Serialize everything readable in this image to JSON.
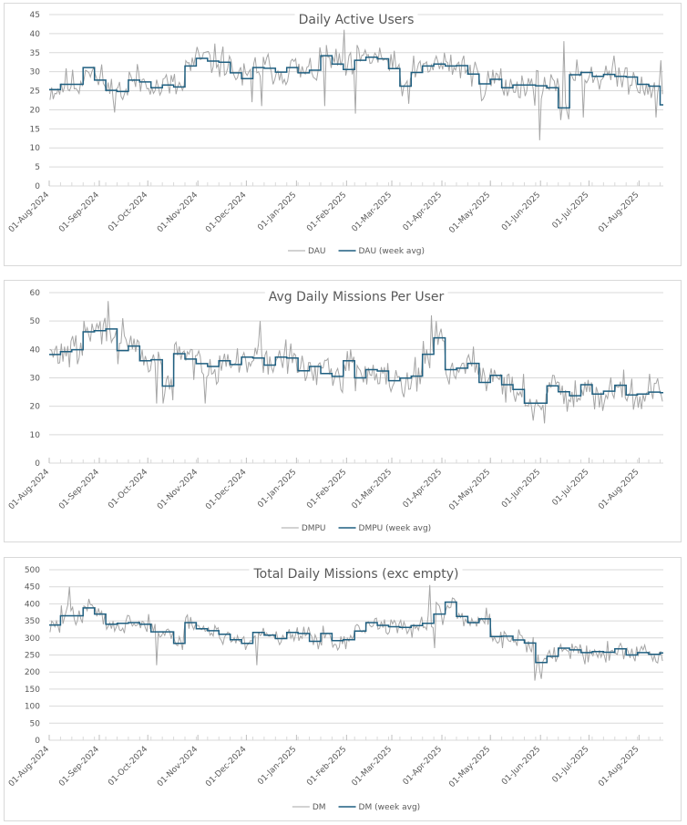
{
  "chart_data": [
    {
      "type": "line",
      "title": "Daily Active Users",
      "xlabel": "",
      "ylabel": "",
      "ylim": [
        0,
        45
      ],
      "yticks": [
        0,
        5,
        10,
        15,
        20,
        25,
        30,
        35,
        40,
        45
      ],
      "x_start": "01-Aug-2024",
      "x_days": 380,
      "xtick_labels": [
        "01-Aug-2024",
        "01-Sep-2024",
        "01-Oct-2024",
        "01-Nov-2024",
        "01-Dec-2024",
        "01-Jan-2025",
        "01-Feb-2025",
        "01-Mar-2025",
        "01-Apr-2025",
        "01-May-2025",
        "01-Jun-2025",
        "01-Jul-2025",
        "01-Aug-2025"
      ],
      "xtick_day_offsets": [
        0,
        31,
        61,
        92,
        122,
        153,
        184,
        212,
        243,
        273,
        304,
        334,
        365
      ],
      "grid": true,
      "legend_position": "bottom",
      "series": [
        {
          "name": "DAU",
          "color": "#a6a6a6",
          "kind": "daily",
          "noise": 4.2,
          "seed": 11,
          "spikes": [
            [
              63,
              26
            ],
            [
              125,
              22
            ],
            [
              131,
              21
            ],
            [
              170,
              21
            ],
            [
              182,
              41
            ],
            [
              189,
              19
            ],
            [
              303,
              12
            ],
            [
              318,
              38
            ],
            [
              330,
              18
            ],
            [
              375,
              18
            ],
            [
              378,
              33
            ]
          ]
        },
        {
          "name": "DAU (week avg)",
          "color": "#1f5f80",
          "kind": "weekly",
          "values": [
            25.3,
            26.7,
            26.7,
            31.1,
            27.8,
            25.1,
            24.8,
            27.8,
            27.3,
            25.8,
            26.5,
            26.0,
            31.5,
            33.5,
            32.8,
            32.5,
            29.7,
            28.2,
            31.1,
            30.9,
            29.9,
            31.1,
            29.7,
            30.4,
            34.2,
            32.0,
            30.6,
            33.0,
            33.8,
            33.4,
            30.8,
            26.2,
            29.8,
            31.5,
            32.0,
            31.5,
            31.6,
            29.4,
            26.8,
            28.0,
            25.8,
            26.5,
            26.5,
            26.3,
            25.8,
            20.5,
            29.2,
            29.8,
            28.8,
            29.3,
            28.8,
            28.6,
            26.7,
            26.2,
            21.3,
            24.5,
            28.0
          ]
        }
      ]
    },
    {
      "type": "line",
      "title": "Avg Daily Missions Per User",
      "xlabel": "",
      "ylabel": "",
      "ylim": [
        0,
        60
      ],
      "yticks": [
        0,
        10,
        20,
        30,
        40,
        50,
        60
      ],
      "x_start": "01-Aug-2024",
      "x_days": 380,
      "xtick_labels": [
        "01-Aug-2024",
        "01-Sep-2024",
        "01-Oct-2024",
        "01-Nov-2024",
        "01-Dec-2024",
        "01-Jan-2025",
        "01-Feb-2025",
        "01-Mar-2025",
        "01-Apr-2025",
        "01-May-2025",
        "01-Jun-2025",
        "01-Jul-2025",
        "01-Aug-2025"
      ],
      "xtick_day_offsets": [
        0,
        31,
        61,
        92,
        122,
        153,
        184,
        212,
        243,
        273,
        304,
        334,
        365
      ],
      "grid": true,
      "legend_position": "bottom",
      "series": [
        {
          "name": "DMPU",
          "color": "#a6a6a6",
          "kind": "daily",
          "noise": 5.5,
          "seed": 29,
          "spikes": [
            [
              36,
              57
            ],
            [
              45,
              51
            ],
            [
              66,
              21
            ],
            [
              70,
              21
            ],
            [
              96,
              21
            ],
            [
              130,
              50
            ],
            [
              236,
              52
            ],
            [
              239,
              50
            ],
            [
              299,
              15
            ],
            [
              306,
              14
            ]
          ]
        },
        {
          "name": "DMPU (week avg)",
          "color": "#1f5f80",
          "kind": "weekly",
          "values": [
            38.2,
            39.2,
            39.9,
            46.2,
            46.6,
            47.2,
            39.6,
            41.2,
            36.0,
            36.4,
            27.1,
            38.5,
            36.6,
            35.0,
            34.0,
            36.0,
            34.7,
            37.3,
            37.0,
            34.5,
            37.3,
            37.0,
            32.5,
            34.0,
            31.5,
            30.5,
            36.0,
            30.0,
            32.9,
            32.4,
            29.0,
            29.9,
            30.6,
            38.3,
            44.1,
            32.9,
            33.4,
            35.1,
            28.4,
            30.9,
            27.6,
            25.9,
            21.1,
            21.1,
            27.2,
            25.1,
            23.7,
            27.6,
            24.3,
            25.3,
            27.4,
            24.0,
            24.3,
            25.0,
            24.8,
            24.2
          ]
        }
      ]
    },
    {
      "type": "line",
      "title": "Total Daily Missions (exc empty)",
      "xlabel": "",
      "ylabel": "",
      "ylim": [
        0,
        500
      ],
      "yticks": [
        0,
        50,
        100,
        150,
        200,
        250,
        300,
        350,
        400,
        450,
        500
      ],
      "x_start": "01-Aug-2024",
      "x_days": 380,
      "xtick_labels": [
        "01-Aug-2024",
        "01-Sep-2024",
        "01-Oct-2024",
        "01-Nov-2024",
        "01-Dec-2024",
        "01-Jan-2025",
        "01-Feb-2025",
        "01-Mar-2025",
        "01-Apr-2025",
        "01-May-2025",
        "01-Jun-2025",
        "01-Jul-2025",
        "01-Aug-2025"
      ],
      "xtick_day_offsets": [
        0,
        31,
        61,
        92,
        122,
        153,
        184,
        212,
        243,
        273,
        304,
        334,
        365
      ],
      "grid": true,
      "legend_position": "bottom",
      "series": [
        {
          "name": "DM",
          "color": "#a6a6a6",
          "kind": "daily",
          "noise": 30,
          "seed": 47,
          "spikes": [
            [
              12,
              450
            ],
            [
              66,
              220
            ],
            [
              128,
              220
            ],
            [
              235,
              455
            ],
            [
              238,
              270
            ],
            [
              300,
              175
            ],
            [
              304,
              180
            ]
          ]
        },
        {
          "name": "DM (week avg)",
          "color": "#1f5f80",
          "kind": "weekly",
          "values": [
            338,
            365,
            365,
            388,
            370,
            340,
            343,
            345,
            340,
            318,
            318,
            284,
            345,
            327,
            321,
            311,
            295,
            284,
            316,
            308,
            298,
            316,
            313,
            290,
            313,
            292,
            295,
            320,
            345,
            337,
            333,
            331,
            336,
            343,
            370,
            405,
            363,
            345,
            356,
            304,
            305,
            294,
            285,
            228,
            246,
            270,
            265,
            257,
            260,
            258,
            268,
            250,
            257,
            252,
            256
          ]
        }
      ]
    }
  ]
}
